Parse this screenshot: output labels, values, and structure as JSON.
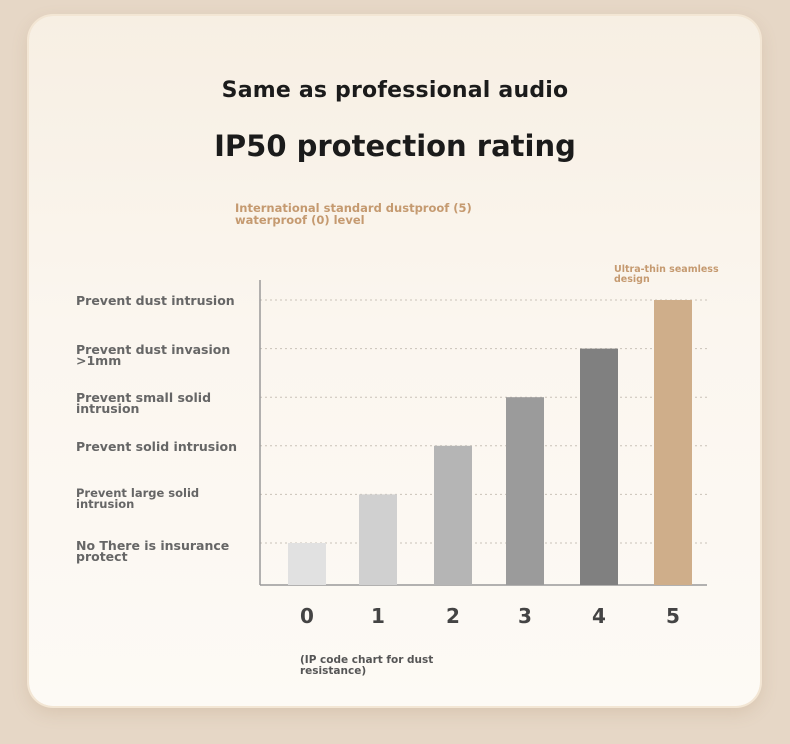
{
  "header": {
    "title": "Same as professional audio",
    "subtitle": "IP50 protection rating",
    "standard_note": "International standard dustproof (5) waterproof (0) level"
  },
  "chart_data": {
    "type": "bar",
    "categories": [
      "0",
      "1",
      "2",
      "3",
      "4",
      "5"
    ],
    "values": [
      0,
      1,
      2,
      3,
      4,
      5
    ],
    "ylim": [
      0,
      5
    ],
    "level_labels": [
      "No There is insurance protect",
      "Prevent large solid intrusion",
      "Prevent solid intrusion",
      "Prevent small solid intrusion",
      "Prevent dust invasion >1mm",
      "Prevent dust intrusion"
    ],
    "xlabel": "(IP code chart for dust resistance)",
    "annotation": "Ultra-thin seamless design",
    "grid": true,
    "colors": [
      "#e1e1e1",
      "#d0d0d0",
      "#b5b5b5",
      "#9b9b9b",
      "#808080",
      "#cfae8a"
    ]
  }
}
